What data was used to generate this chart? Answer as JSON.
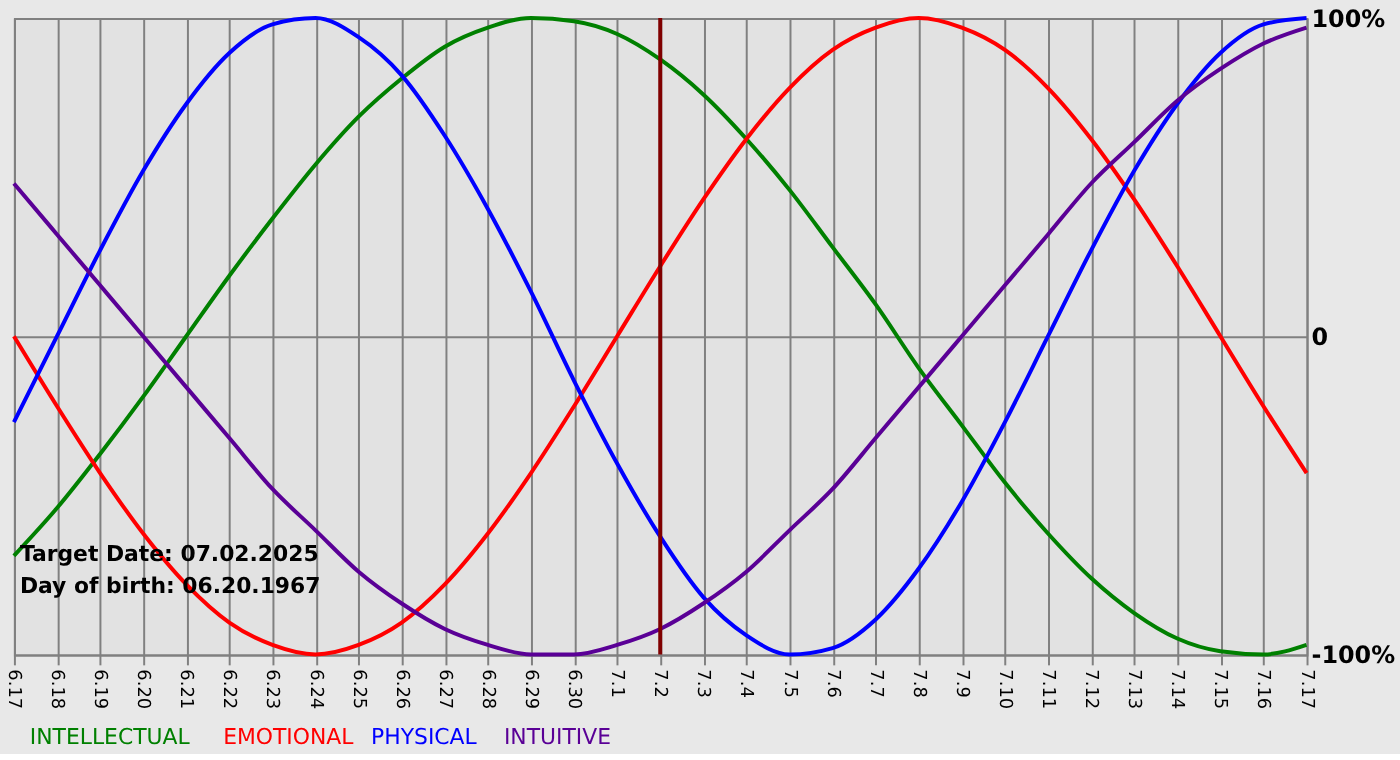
{
  "chart_data": {
    "type": "line",
    "categories": [
      "6.17",
      "6.18",
      "6.19",
      "6.20",
      "6.21",
      "6.22",
      "6.23",
      "6.24",
      "6.25",
      "6.26",
      "6.27",
      "6.28",
      "6.29",
      "6.30",
      "7.1",
      "7.2",
      "7.3",
      "7.4",
      "7.5",
      "7.6",
      "7.7",
      "7.8",
      "7.9",
      "7.10",
      "7.11",
      "7.12",
      "7.13",
      "7.14",
      "7.15",
      "7.16",
      "7.17"
    ],
    "series": [
      {
        "name": "INTELLECTUAL",
        "color": "#008000",
        "values": [
          -69,
          -54,
          -37,
          -19,
          0,
          19,
          37,
          54,
          69,
          81,
          91,
          97,
          100,
          99,
          95,
          87,
          76,
          62,
          46,
          28,
          10,
          -10,
          -28,
          -46,
          -62,
          -76,
          -87,
          -95,
          -99,
          -100,
          -97
        ]
      },
      {
        "name": "EMOTIONAL",
        "color": "#ff0000",
        "values": [
          0,
          -22,
          -43,
          -62,
          -78,
          -90,
          -97,
          -100,
          -97,
          -90,
          -78,
          -62,
          -43,
          -22,
          0,
          22,
          43,
          62,
          78,
          90,
          97,
          100,
          97,
          90,
          78,
          62,
          43,
          22,
          0,
          -22,
          -43
        ]
      },
      {
        "name": "PHYSICAL",
        "color": "#0000ff",
        "values": [
          -27,
          0,
          27,
          52,
          73,
          89,
          98,
          100,
          94,
          82,
          63,
          40,
          14,
          -14,
          -40,
          -63,
          -82,
          -94,
          -100,
          -98,
          -89,
          -73,
          -52,
          -27,
          0,
          27,
          52,
          73,
          89,
          98,
          100
        ]
      },
      {
        "name": "INTUITIVE",
        "color": "#5a0096",
        "values": [
          48,
          32,
          16,
          0,
          -16,
          -32,
          -48,
          -61,
          -74,
          -84,
          -92,
          -97,
          -100,
          -100,
          -97,
          -92,
          -84,
          -74,
          -61,
          -48,
          -32,
          -16,
          0,
          16,
          32,
          48,
          61,
          74,
          84,
          92,
          97
        ]
      }
    ],
    "ylim": [
      -100,
      100
    ],
    "yticks": [
      {
        "value": 100,
        "label": "100%"
      },
      0,
      {
        "value": -100,
        "label": "-100%"
      }
    ],
    "grid": true,
    "legend": "bottom left",
    "ref_lines": [
      {
        "axis": "x",
        "value": "7.2",
        "color": "#800000"
      }
    ],
    "annotations": [
      "Target Date: 07.02.2025",
      "Day of birth: 06.20.1967"
    ]
  }
}
